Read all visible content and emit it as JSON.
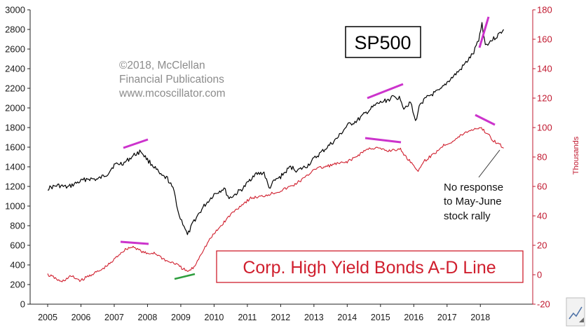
{
  "chart_data": {
    "type": "line",
    "title": "SP500",
    "legend_text": "Corp. High Yield Bonds A-D Line",
    "watermark": [
      "©2018, McClellan",
      "Financial Publications",
      "www.mcoscillator.com"
    ],
    "annotation": [
      "No response",
      "to May-June",
      "stock rally"
    ],
    "xlabel": "",
    "ylabel_left": "",
    "ylabel_right": "Thousands",
    "x_ticks": [
      "2005",
      "2006",
      "2007",
      "2008",
      "2009",
      "2010",
      "2011",
      "2012",
      "2013",
      "2014",
      "2015",
      "2016",
      "2017",
      "2018"
    ],
    "xlim": [
      2005.0,
      2018.9
    ],
    "ylim_left": [
      0,
      3000
    ],
    "ylim_right": [
      -20,
      180
    ],
    "y_ticks_left": [
      "0",
      "200",
      "400",
      "600",
      "800",
      "1000",
      "1200",
      "1400",
      "1600",
      "1800",
      "2000",
      "2200",
      "2400",
      "2600",
      "2800",
      "3000"
    ],
    "y_ticks_right": [
      "-20",
      "0",
      "20",
      "40",
      "60",
      "80",
      "100",
      "120",
      "140",
      "160",
      "180"
    ],
    "series": [
      {
        "name": "SP500",
        "axis": "left",
        "color": "#000000",
        "x": [
          2005.0,
          2005.3,
          2005.6,
          2005.9,
          2006.2,
          2006.5,
          2006.8,
          2007.0,
          2007.3,
          2007.6,
          2007.8,
          2008.0,
          2008.2,
          2008.4,
          2008.6,
          2008.8,
          2008.95,
          2009.1,
          2009.2,
          2009.4,
          2009.7,
          2010.0,
          2010.3,
          2010.45,
          2010.6,
          2010.9,
          2011.2,
          2011.5,
          2011.65,
          2011.8,
          2012.0,
          2012.3,
          2012.5,
          2012.8,
          2013.0,
          2013.4,
          2013.7,
          2014.0,
          2014.3,
          2014.6,
          2014.9,
          2015.2,
          2015.4,
          2015.6,
          2015.7,
          2015.9,
          2016.05,
          2016.2,
          2016.5,
          2016.8,
          2017.0,
          2017.4,
          2017.8,
          2017.95,
          2018.05,
          2018.15,
          2018.3,
          2018.5,
          2018.7
        ],
        "values": [
          1180,
          1210,
          1190,
          1240,
          1280,
          1270,
          1330,
          1420,
          1440,
          1520,
          1560,
          1470,
          1400,
          1310,
          1280,
          1150,
          900,
          800,
          700,
          850,
          1000,
          1120,
          1180,
          1080,
          1110,
          1190,
          1320,
          1340,
          1180,
          1250,
          1300,
          1400,
          1360,
          1410,
          1480,
          1600,
          1690,
          1820,
          1870,
          1960,
          2040,
          2080,
          2110,
          2100,
          2000,
          2060,
          1860,
          2050,
          2130,
          2180,
          2260,
          2390,
          2560,
          2700,
          2860,
          2640,
          2680,
          2730,
          2800
        ]
      },
      {
        "name": "Corp. High Yield Bonds A-D Line",
        "axis": "right",
        "color": "#d01f2e",
        "x": [
          2005.0,
          2005.2,
          2005.4,
          2005.7,
          2006.0,
          2006.3,
          2006.6,
          2006.9,
          2007.2,
          2007.4,
          2007.6,
          2007.8,
          2008.0,
          2008.2,
          2008.4,
          2008.6,
          2008.8,
          2009.0,
          2009.2,
          2009.4,
          2009.6,
          2009.9,
          2010.2,
          2010.5,
          2010.8,
          2011.1,
          2011.4,
          2011.7,
          2012.0,
          2012.4,
          2012.8,
          2013.0,
          2013.3,
          2013.6,
          2013.9,
          2014.2,
          2014.5,
          2014.7,
          2014.9,
          2015.2,
          2015.4,
          2015.6,
          2015.8,
          2016.0,
          2016.1,
          2016.3,
          2016.6,
          2016.9,
          2017.2,
          2017.5,
          2017.8,
          2018.0,
          2018.2,
          2018.4,
          2018.6,
          2018.7
        ],
        "values": [
          0,
          -2,
          -5,
          -1,
          -4,
          0,
          3,
          8,
          15,
          18,
          19,
          16,
          14,
          15,
          12,
          9,
          8,
          5,
          2,
          5,
          14,
          25,
          33,
          41,
          47,
          52,
          53,
          55,
          57,
          61,
          67,
          72,
          73,
          75,
          76,
          79,
          84,
          86,
          86,
          84,
          85,
          85,
          79,
          75,
          70,
          77,
          82,
          88,
          91,
          96,
          99,
          100,
          96,
          91,
          88,
          86
        ]
      }
    ]
  },
  "colors": {
    "axis": "#222222",
    "right_axis": "#c0182f",
    "trend_magenta": "#cc33cc",
    "trend_green": "#2e9e3e",
    "legend_border": "#d01f2e",
    "sp_box_border": "#000000"
  }
}
